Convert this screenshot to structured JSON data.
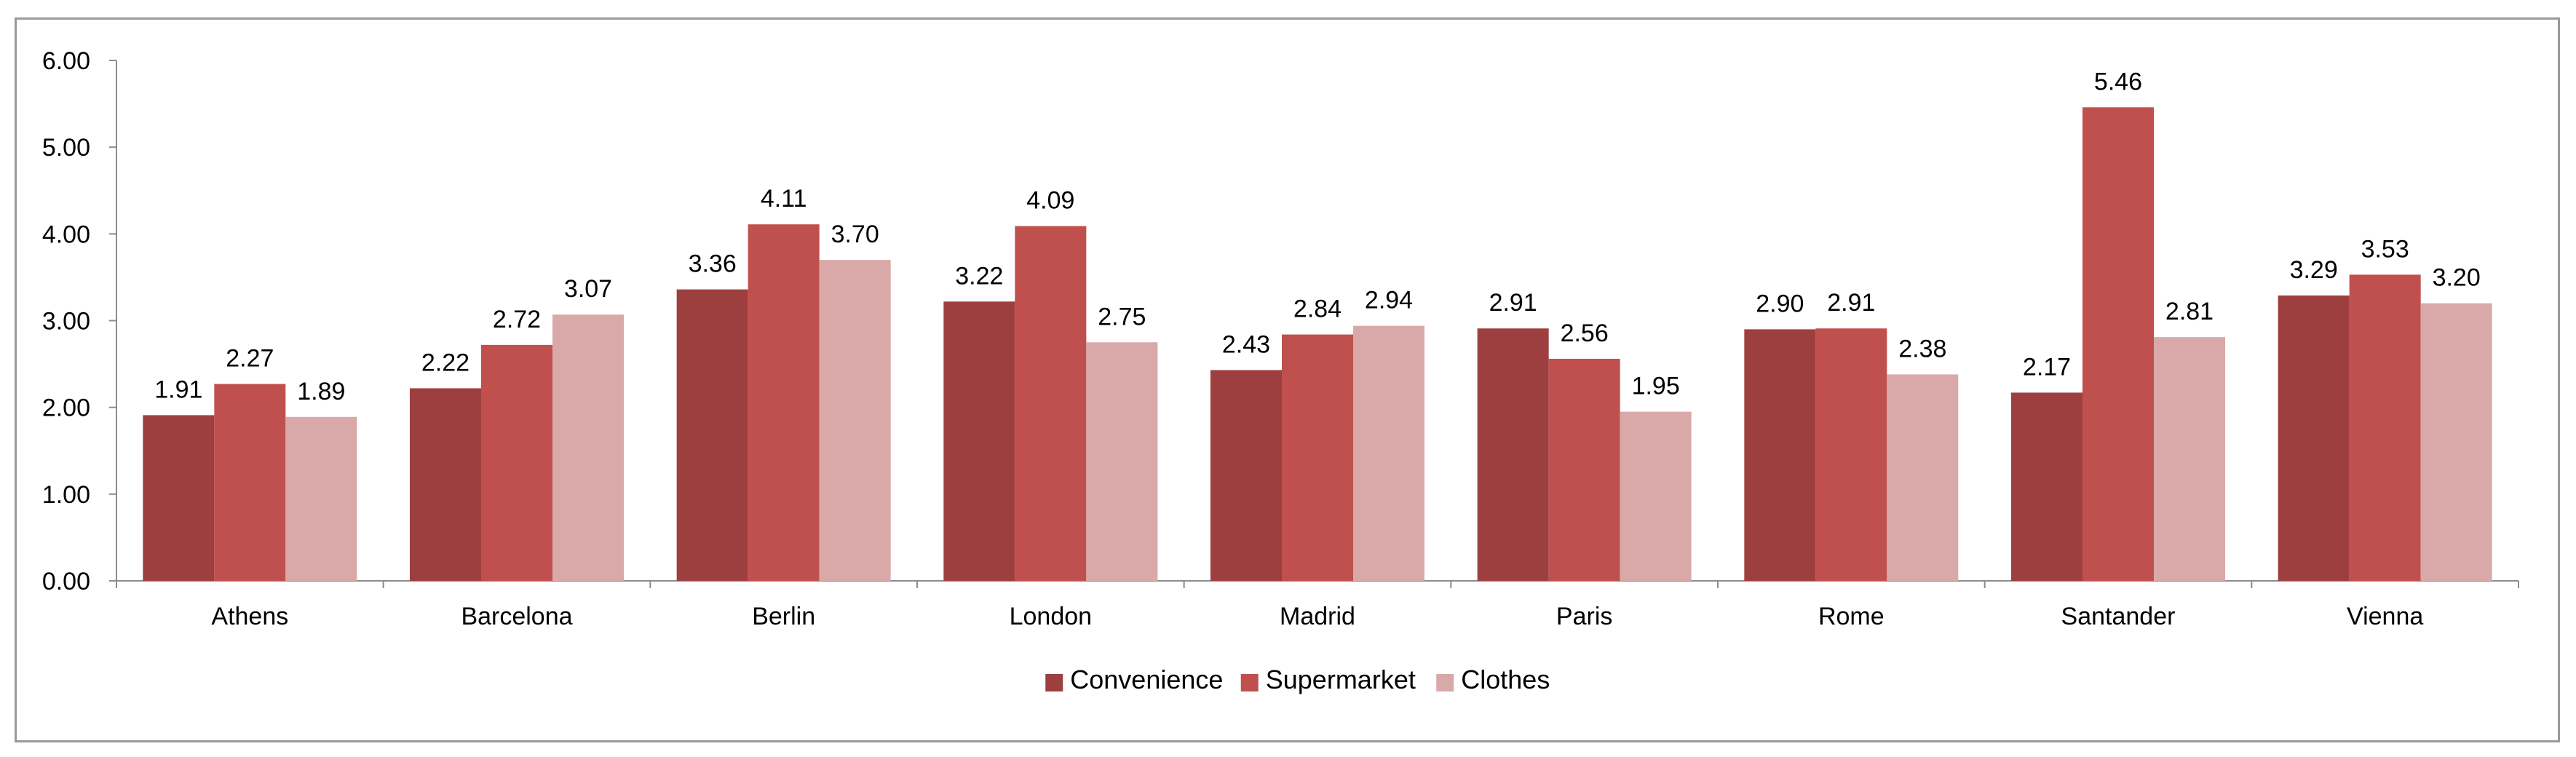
{
  "chart_data": {
    "type": "bar",
    "categories": [
      "Athens",
      "Barcelona",
      "Berlin",
      "London",
      "Madrid",
      "Paris",
      "Rome",
      "Santander",
      "Vienna"
    ],
    "series": [
      {
        "name": "Convenience",
        "color": "#9e3f3f",
        "values": [
          1.91,
          2.22,
          3.36,
          3.22,
          2.43,
          2.91,
          2.9,
          2.17,
          3.29
        ],
        "labels": [
          "1.91",
          "2.22",
          "3.36",
          "3.22",
          "2.43",
          "2.91",
          "2.90",
          "2.17",
          "3.29"
        ]
      },
      {
        "name": "Supermarket",
        "color": "#c0504d",
        "values": [
          2.27,
          2.72,
          4.11,
          4.09,
          2.84,
          2.56,
          2.91,
          5.46,
          3.53
        ],
        "labels": [
          "2.27",
          "2.72",
          "4.11",
          "4.09",
          "2.84",
          "2.56",
          "2.91",
          "5.46",
          "3.53"
        ]
      },
      {
        "name": "Clothes",
        "color": "#d9a9a9",
        "values": [
          1.89,
          3.07,
          3.7,
          2.75,
          2.94,
          1.95,
          2.38,
          2.81,
          3.2
        ],
        "labels": [
          "1.89",
          "3.07",
          "3.70",
          "2.75",
          "2.94",
          "1.95",
          "2.38",
          "2.81",
          "3.20"
        ]
      }
    ],
    "ylim": [
      0,
      6
    ],
    "yticks": [
      "0.00",
      "1.00",
      "2.00",
      "3.00",
      "4.00",
      "5.00",
      "6.00"
    ],
    "title": "",
    "xlabel": "",
    "ylabel": "",
    "grid": false,
    "legend_position": "bottom"
  }
}
